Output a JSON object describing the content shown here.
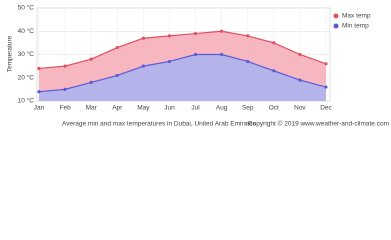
{
  "chart_data": {
    "type": "area",
    "y_label": "Temperature",
    "caption": "Average min and max temperatures in Dubai, United Arab Emirates",
    "copyright": "Copyright © 2019 www.weather-and-climate.com",
    "categories": [
      "Jan",
      "Feb",
      "Mar",
      "Apr",
      "May",
      "Jun",
      "Jul",
      "Aug",
      "Sep",
      "Oct",
      "Nov",
      "Dec"
    ],
    "series": [
      {
        "name": "Max temp",
        "color": "#e0505f",
        "fill": "#f7b7c0",
        "values": [
          24,
          25,
          28,
          33,
          37,
          38,
          39,
          40,
          38,
          35,
          30,
          26
        ]
      },
      {
        "name": "Min temp",
        "color": "#5a5ad6",
        "fill": "#b4b4ea",
        "values": [
          14,
          15,
          18,
          21,
          25,
          27,
          30,
          30,
          27,
          23,
          19,
          16
        ]
      }
    ],
    "ylim": [
      10,
      50
    ],
    "yticks": [
      {
        "value": 10,
        "label": "10 °C"
      },
      {
        "value": 20,
        "label": "20 °C"
      },
      {
        "value": 30,
        "label": "30 °C"
      },
      {
        "value": 40,
        "label": "40 °C"
      },
      {
        "value": 50,
        "label": "50 °C"
      }
    ],
    "grid": true,
    "legend": "top-right"
  }
}
